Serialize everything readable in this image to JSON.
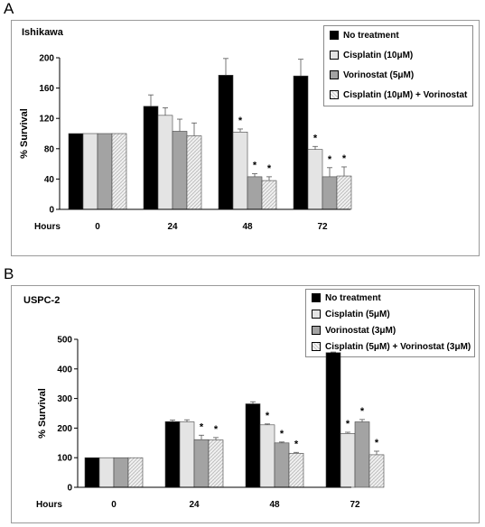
{
  "chart_data": [
    {
      "panel": "A",
      "title": "Ishikawa",
      "type": "bar",
      "ylabel": "% Survival",
      "xlabel": "Hours",
      "categories": [
        "0",
        "24",
        "48",
        "72"
      ],
      "ylim": [
        0,
        200
      ],
      "yticks": [
        0,
        40,
        80,
        120,
        160,
        200
      ],
      "grid": false,
      "legend_position": "top-right",
      "series": [
        {
          "name": "No treatment",
          "values": [
            100,
            136,
            177,
            176
          ],
          "errors": [
            0,
            15,
            22,
            22
          ],
          "marks": [
            "",
            "",
            "",
            ""
          ]
        },
        {
          "name": "Cisplatin (10μM)",
          "values": [
            100,
            124,
            102,
            79
          ],
          "errors": [
            0,
            10,
            4,
            4
          ],
          "marks": [
            "",
            "",
            "*",
            "*"
          ]
        },
        {
          "name": "Vorinostat (5μM)",
          "values": [
            100,
            103,
            43,
            43
          ],
          "errors": [
            0,
            16,
            4,
            12
          ],
          "marks": [
            "",
            "",
            "*",
            "*"
          ]
        },
        {
          "name": "Cisplatin (10μM) + Vorinostat",
          "values": [
            100,
            97,
            38,
            44
          ],
          "errors": [
            0,
            17,
            5,
            12
          ],
          "marks": [
            "",
            "",
            "*",
            "*"
          ]
        }
      ]
    },
    {
      "panel": "B",
      "title": "USPC-2",
      "type": "bar",
      "ylabel": "% Survival",
      "xlabel": "Hours",
      "categories": [
        "0",
        "24",
        "48",
        "72"
      ],
      "ylim": [
        0,
        500
      ],
      "yticks": [
        0,
        100,
        200,
        300,
        400,
        500
      ],
      "grid": false,
      "legend_position": "top-right",
      "series": [
        {
          "name": "No treatment",
          "values": [
            100,
            222,
            282,
            455
          ],
          "errors": [
            0,
            5,
            7,
            2
          ],
          "marks": [
            "",
            "",
            "",
            ""
          ]
        },
        {
          "name": "Cisplatin (5μM)",
          "values": [
            100,
            221,
            211,
            182
          ],
          "errors": [
            0,
            7,
            3,
            4
          ],
          "marks": [
            "",
            "",
            "*",
            "*"
          ]
        },
        {
          "name": "Vorinostat (3μM)",
          "values": [
            100,
            161,
            150,
            221
          ],
          "errors": [
            0,
            15,
            3,
            8
          ],
          "marks": [
            "",
            "*",
            "*",
            "*"
          ]
        },
        {
          "name": "Cisplatin (5μM) + Vorinostat (3μM)",
          "values": [
            100,
            160,
            115,
            110
          ],
          "errors": [
            0,
            8,
            3,
            12
          ],
          "marks": [
            "",
            "*",
            "*",
            "*"
          ]
        }
      ]
    }
  ]
}
